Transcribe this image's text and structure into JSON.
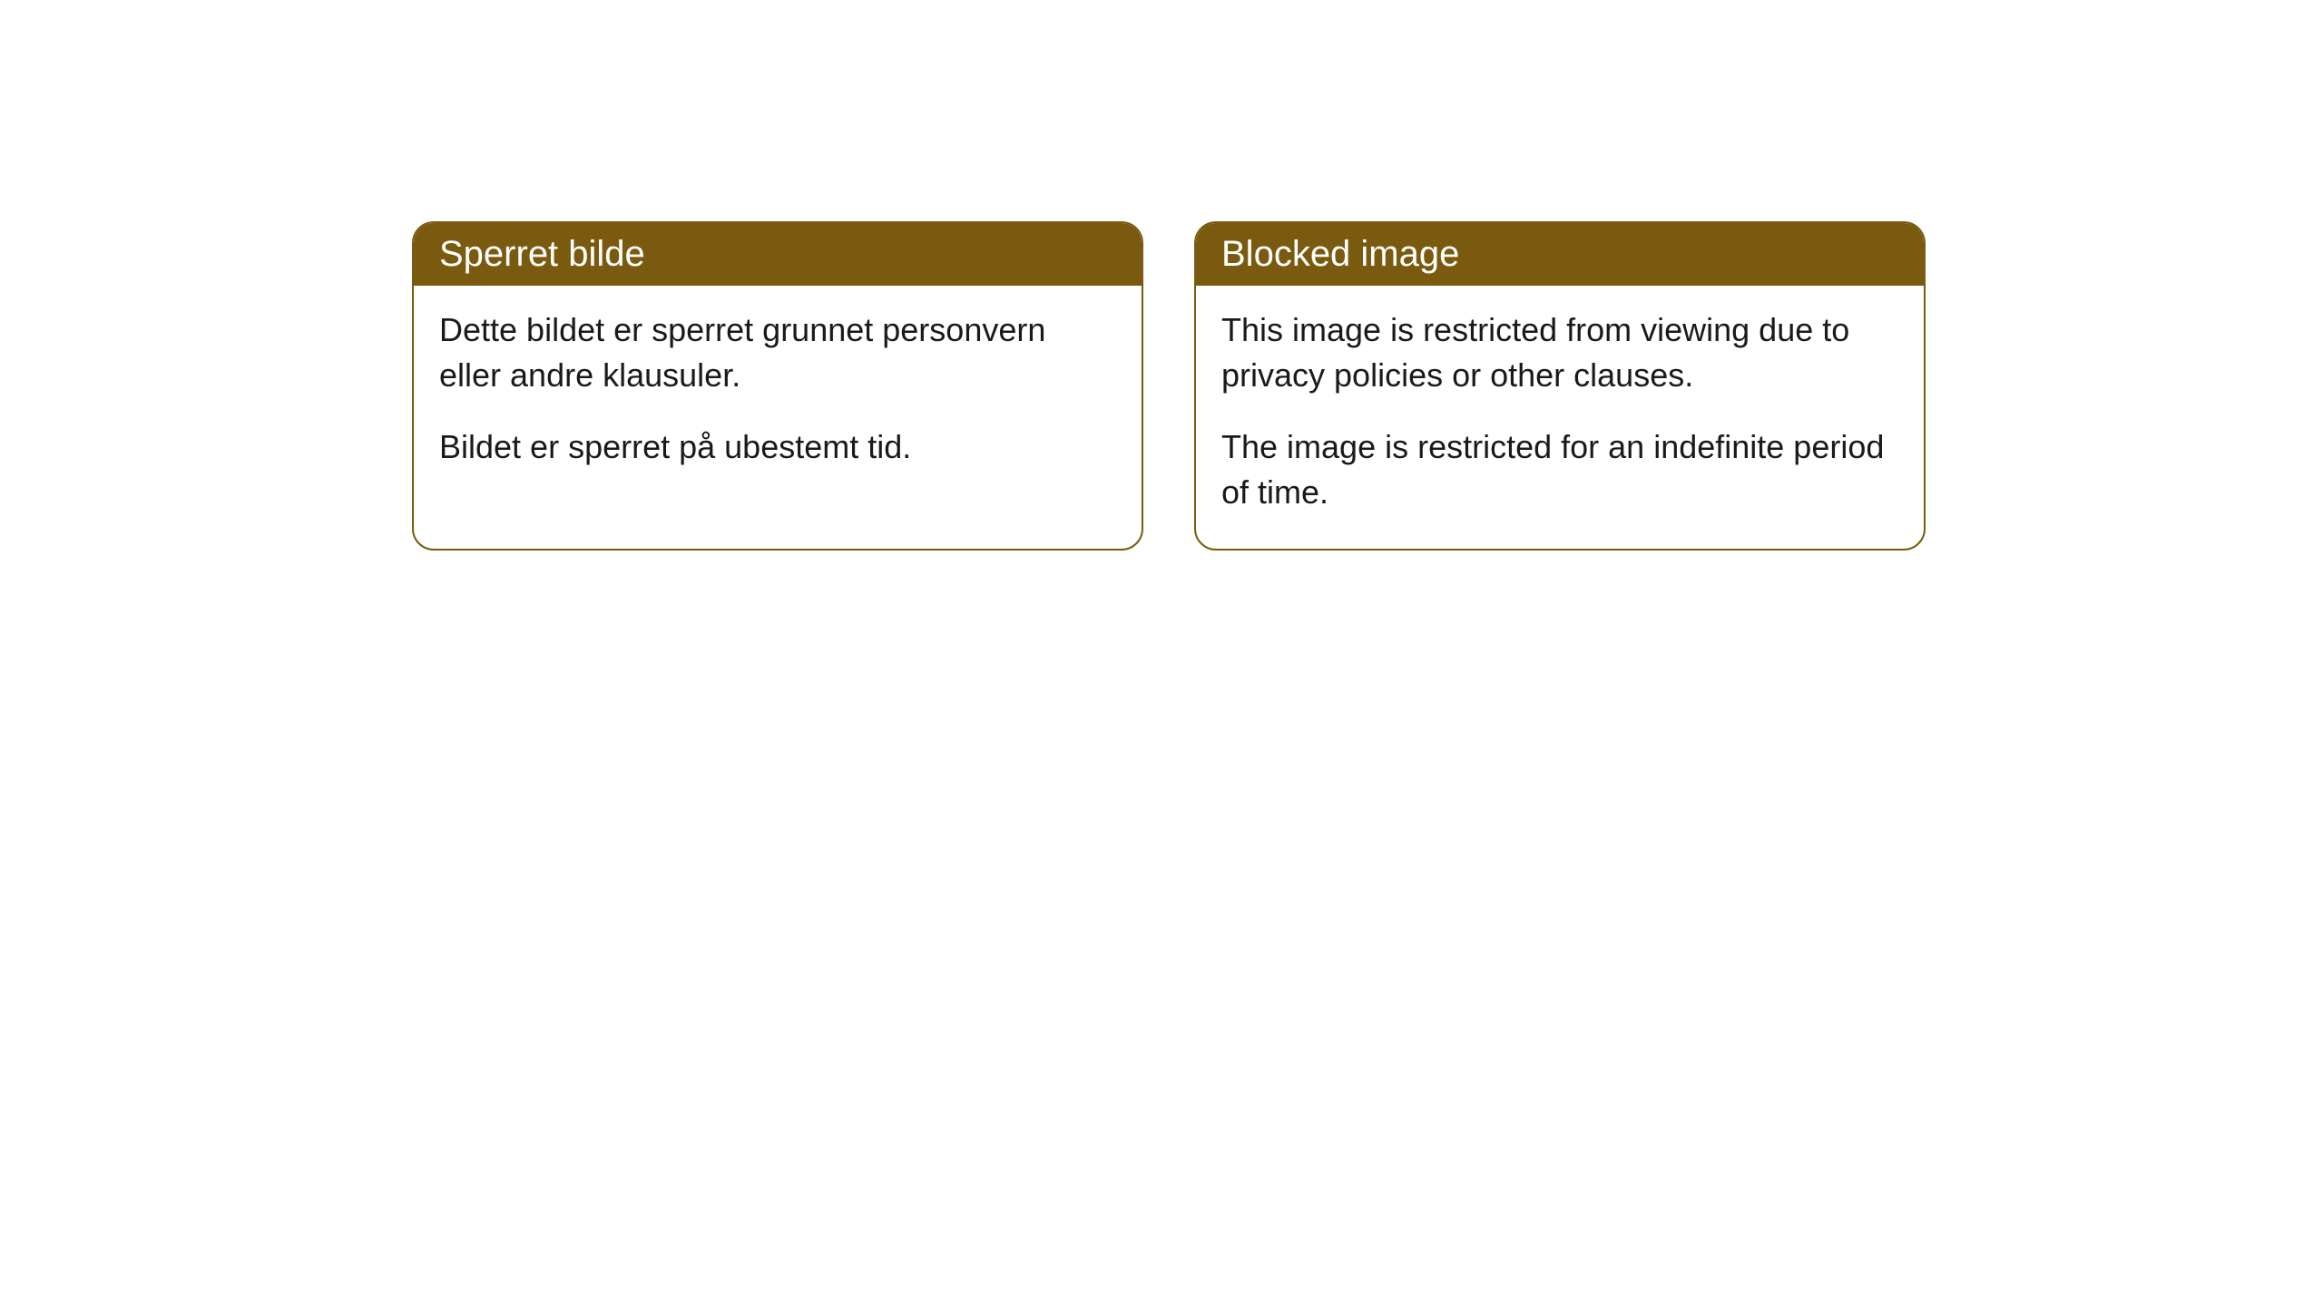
{
  "cards": [
    {
      "title": "Sperret bilde",
      "paragraphs": [
        "Dette bildet er sperret grunnet personvern eller andre klausuler.",
        "Bildet er sperret på ubestemt tid."
      ]
    },
    {
      "title": "Blocked image",
      "paragraphs": [
        "This image is restricted from viewing due to privacy policies or other clauses.",
        "The image is restricted for an indefinite period of time."
      ]
    }
  ],
  "styling": {
    "header_background": "#7a5a0f",
    "header_text_color": "#ffffff",
    "card_border_color": "#7a5a0f",
    "card_background": "#ffffff",
    "body_text_color": "#1a1a1a",
    "page_background": "#ffffff",
    "border_radius": 24,
    "header_fontsize": 40,
    "body_fontsize": 36
  }
}
